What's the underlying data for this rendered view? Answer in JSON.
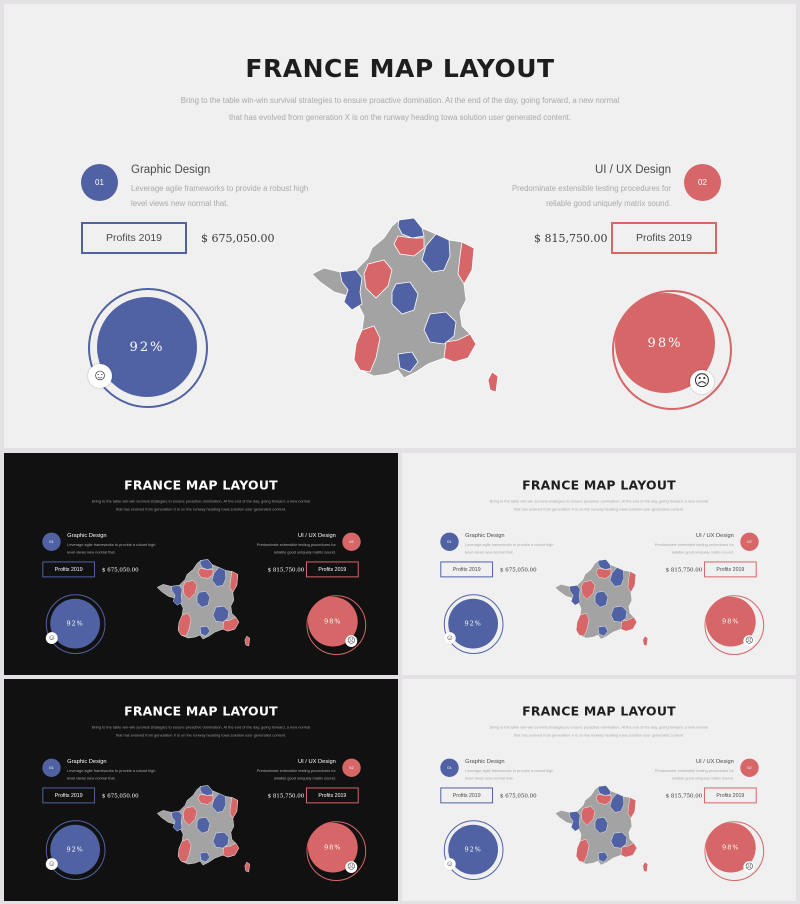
{
  "slide": {
    "title": "FRANCE MAP LAYOUT",
    "subtitle_line1": "Bring to the table win-win survival strategies to ensure proactive domination. At the end of the day, going forward, a new normal",
    "subtitle_line2": "that has evolved from generation X is on the runway heading towa solution user generated content.",
    "left": {
      "number": "01",
      "heading": "Graphic Design",
      "description": "Leverage agile frameworks to provide a robust high level views new normal that.",
      "profit_label": "Profits 2019",
      "amount": "$ 675,050.00",
      "percent": "92%",
      "face_icon": "smiley-face-icon"
    },
    "right": {
      "number": "02",
      "heading": "UI / UX Design",
      "description": "Predominate extensible testing procedures for reliable good uniquely matrix sound.",
      "profit_label": "Profits 2019",
      "amount": "$ 815,750.00",
      "percent": "98%",
      "face_icon": "sad-face-icon"
    },
    "map_icon": "france-map"
  },
  "colors": {
    "blue": "#5062a3",
    "red": "#d66667",
    "gray": "#a3a3a3",
    "light_bg": "#f1f0f1",
    "dark_bg": "#111111"
  },
  "thumbnails": [
    "dark",
    "light",
    "dark",
    "light"
  ]
}
